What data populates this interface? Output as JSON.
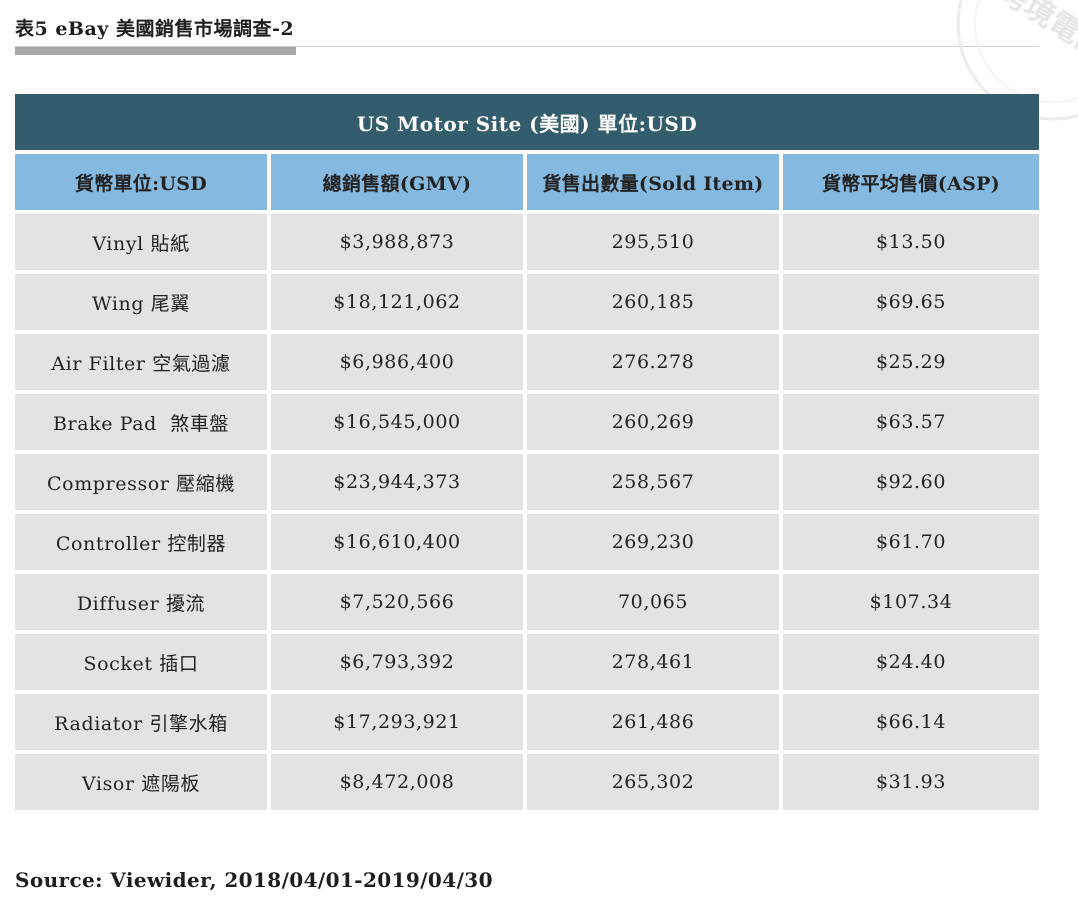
{
  "document": {
    "title": "表5 eBay 美國銷售市場調查-2",
    "source": "Source: Viewider, 2018/04/01-2019/04/30",
    "watermark_text": "跨境電商生"
  },
  "table": {
    "caption": "US Motor Site (美國) 單位:USD",
    "headers": [
      "貨幣單位:USD",
      "總銷售額(GMV)",
      "貨售出數量(Sold Item)",
      "貨幣平均售價(ASP)"
    ],
    "rows": [
      [
        "Vinyl 貼紙",
        "$3,988,873",
        "295,510",
        "$13.50"
      ],
      [
        "Wing 尾翼",
        "$18,121,062",
        "260,185",
        "$69.65"
      ],
      [
        "Air Filter 空氣過濾",
        "$6,986,400",
        "276.278",
        "$25.29"
      ],
      [
        "Brake Pad  煞車盤",
        "$16,545,000",
        "260,269",
        "$63.57"
      ],
      [
        "Compressor 壓縮機",
        "$23,944,373",
        "258,567",
        "$92.60"
      ],
      [
        "Controller 控制器",
        "$16,610,400",
        "269,230",
        "$61.70"
      ],
      [
        "Diffuser 擾流",
        "$7,520,566",
        "70,065",
        "$107.34"
      ],
      [
        "Socket 插口",
        "$6,793,392",
        "278,461",
        "$24.40"
      ],
      [
        "Radiator 引擎水箱",
        "$17,293,921",
        "261,486",
        "$66.14"
      ],
      [
        "Visor 遮陽板",
        "$8,472,008",
        "265,302",
        "$31.93"
      ]
    ]
  },
  "colors": {
    "caption_bg": "#335d6d",
    "header_bg": "#86b9e0",
    "cell_bg": "#e2e3e5"
  }
}
